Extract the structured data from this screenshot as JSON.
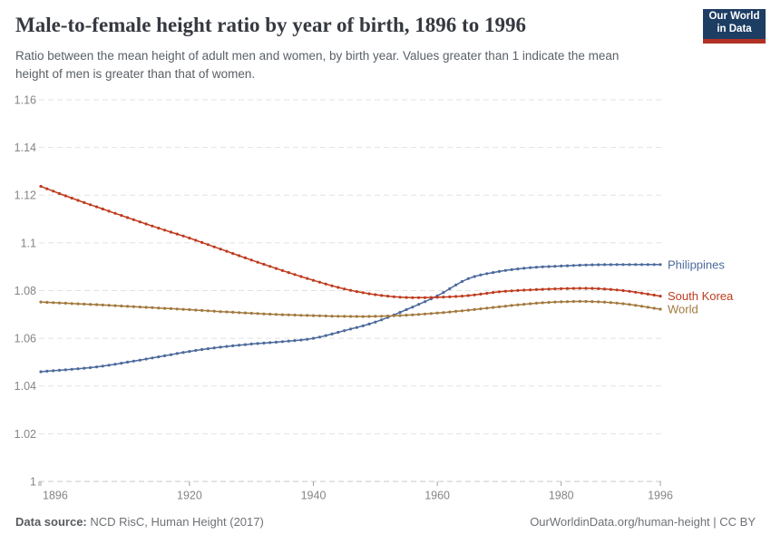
{
  "header": {
    "title": "Male-to-female height ratio by year of birth, 1896 to 1996",
    "subtitle": "Ratio between the mean height of adult men and women, by birth year. Values greater than 1 indicate the mean height of men is greater than that of women.",
    "logo": {
      "line1": "Our World",
      "line2": "in Data",
      "bg_color": "#1d3d63",
      "accent_color": "#b13225"
    }
  },
  "footer": {
    "source_label": "Data source:",
    "source_text": " NCD RisC, Human Height (2017)",
    "attribution": "OurWorldinData.org/human-height | CC BY"
  },
  "chart_data": {
    "type": "line",
    "title": "Male-to-female height ratio by year of birth, 1896 to 1996",
    "xlabel": "",
    "ylabel": "",
    "x_range": [
      1896,
      1996
    ],
    "ylim": [
      1,
      1.16
    ],
    "grid": "horizontal dashed",
    "legend_position": "right-end-labels",
    "marker_interval_years": 1,
    "x_ticks": [
      {
        "value": 1896,
        "label": "1896"
      },
      {
        "value": 1920,
        "label": "1920"
      },
      {
        "value": 1940,
        "label": "1940"
      },
      {
        "value": 1960,
        "label": "1960"
      },
      {
        "value": 1980,
        "label": "1980"
      },
      {
        "value": 1996,
        "label": "1996"
      }
    ],
    "y_ticks": [
      {
        "value": 1.16,
        "label": "1.16"
      },
      {
        "value": 1.14,
        "label": "1.14"
      },
      {
        "value": 1.12,
        "label": "1.12"
      },
      {
        "value": 1.1,
        "label": "1.1"
      },
      {
        "value": 1.08,
        "label": "1.08"
      },
      {
        "value": 1.06,
        "label": "1.06"
      },
      {
        "value": 1.04,
        "label": "1.04"
      },
      {
        "value": 1.02,
        "label": "1.02"
      },
      {
        "value": 1,
        "label": "1"
      }
    ],
    "x": [
      1896,
      1900,
      1905,
      1910,
      1915,
      1920,
      1925,
      1930,
      1935,
      1940,
      1945,
      1950,
      1955,
      1960,
      1965,
      1970,
      1975,
      1980,
      1985,
      1990,
      1996
    ],
    "series": [
      {
        "name": "Philippines",
        "color": "#4C6A9C",
        "values": [
          1.046,
          1.0468,
          1.048,
          1.05,
          1.0522,
          1.0545,
          1.0563,
          1.0576,
          1.0586,
          1.06,
          1.0632,
          1.0668,
          1.072,
          1.0778,
          1.085,
          1.088,
          1.0896,
          1.0903,
          1.0908,
          1.0909,
          1.0909
        ]
      },
      {
        "name": "South Korea",
        "color": "#BF3B1E",
        "values": [
          1.1237,
          1.1197,
          1.1151,
          1.1106,
          1.1062,
          1.102,
          1.0974,
          1.0928,
          1.0884,
          1.0843,
          1.0807,
          1.0783,
          1.0771,
          1.0772,
          1.0779,
          1.0795,
          1.0803,
          1.0808,
          1.0809,
          1.08,
          1.0777
        ]
      },
      {
        "name": "World",
        "color": "#A2793D",
        "values": [
          1.0752,
          1.0747,
          1.0741,
          1.0734,
          1.0727,
          1.072,
          1.0712,
          1.0705,
          1.0699,
          1.0695,
          1.0692,
          1.0692,
          1.0697,
          1.0706,
          1.0718,
          1.0732,
          1.0745,
          1.0753,
          1.0754,
          1.0745,
          1.0722
        ]
      }
    ],
    "style": {
      "gridline_color": "#e2e2e2",
      "baseline_color": "#c8c8c8",
      "tick_color": "#a0a0a0",
      "axis_text_color": "#858585"
    }
  }
}
